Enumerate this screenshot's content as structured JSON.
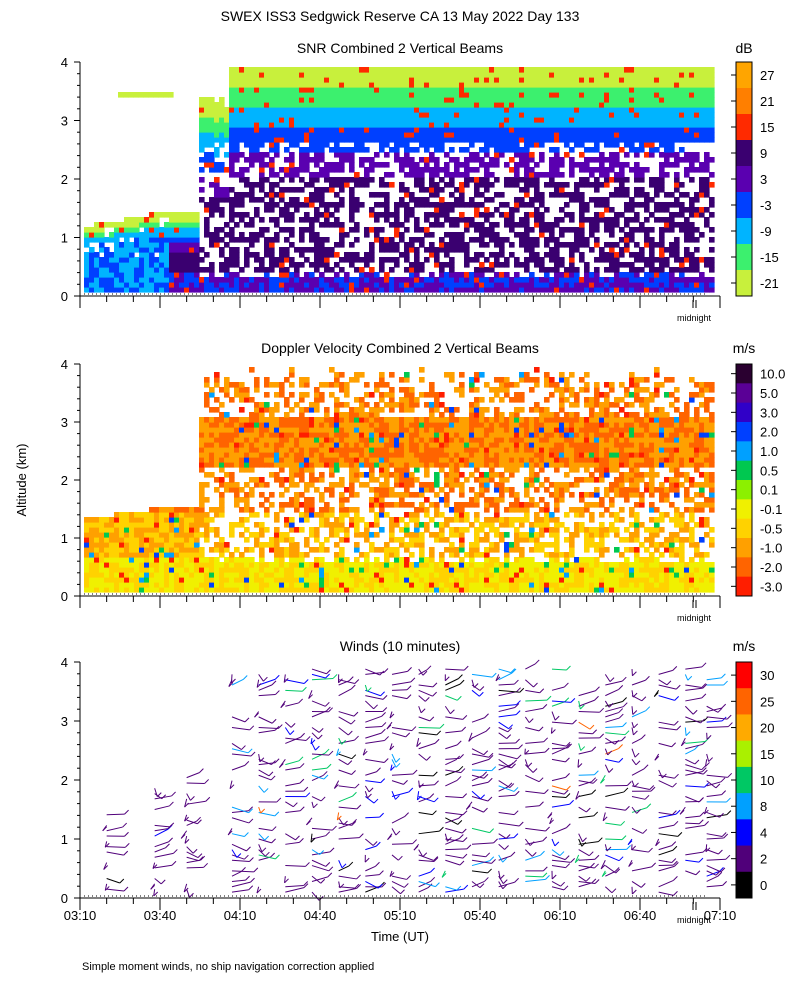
{
  "figure": {
    "title": "SWEX ISS3 Sedgwick Reserve CA  13 May 2022 Day 133",
    "ylabel": "Altitude (km)",
    "xlabel": "Time (UT)",
    "footnote": "Simple moment winds, no ship navigation correction applied",
    "midnight_label": "midnight",
    "x_ticks": [
      "03:10",
      "03:40",
      "04:10",
      "04:40",
      "05:10",
      "05:40",
      "06:10",
      "06:40",
      "07:10"
    ],
    "y_ticks": [
      "0",
      "1",
      "2",
      "3",
      "4"
    ]
  },
  "chart_data": [
    {
      "type": "heatmap",
      "title": "SNR Combined 2 Vertical Beams",
      "unit": "dB",
      "xlim": [
        "03:10",
        "07:10"
      ],
      "ylim": [
        0,
        4
      ],
      "colorbar": {
        "labels": [
          "27",
          "21",
          "15",
          "9",
          "3",
          "-3",
          "-9",
          "-15",
          "-21"
        ],
        "colors": [
          "#ffa500",
          "#ff7f00",
          "#ff2a00",
          "#3a0070",
          "#5a00b0",
          "#0040ff",
          "#00b4ff",
          "#3cf06e",
          "#c8f03c"
        ]
      }
    },
    {
      "type": "heatmap",
      "title": "Doppler Velocity Combined 2 Vertical Beams",
      "unit": "m/s",
      "xlim": [
        "03:10",
        "07:10"
      ],
      "ylim": [
        0,
        4
      ],
      "colorbar": {
        "labels": [
          "10.0",
          "5.0",
          "3.0",
          "2.0",
          "1.0",
          "0.5",
          "0.1",
          "-0.1",
          "-0.5",
          "-1.0",
          "-2.0",
          "-3.0"
        ],
        "colors": [
          "#2a0030",
          "#5a0096",
          "#3000c8",
          "#0040ff",
          "#00a0ff",
          "#00c850",
          "#8cf000",
          "#f0f000",
          "#ffd200",
          "#ffa000",
          "#ff6400",
          "#ff1e00"
        ]
      }
    },
    {
      "type": "scatter",
      "title": "Winds (10 minutes)",
      "unit": "m/s",
      "xlim": [
        "03:10",
        "07:10"
      ],
      "ylim": [
        0,
        4
      ],
      "colorbar": {
        "labels": [
          "30",
          "25",
          "20",
          "15",
          "10",
          "8",
          "4",
          "2",
          "0"
        ],
        "colors": [
          "#ff0000",
          "#ff6400",
          "#ffaa00",
          "#aaf000",
          "#00c864",
          "#00a0ff",
          "#0000ff",
          "#50007a",
          "#000000"
        ]
      },
      "profile_times": [
        "03:20",
        "03:38",
        "03:50",
        "04:07",
        "04:17",
        "04:27",
        "04:37",
        "04:47",
        "04:57",
        "05:07",
        "05:17",
        "05:27",
        "05:37",
        "05:47",
        "05:57",
        "06:07",
        "06:17",
        "06:27",
        "06:37",
        "06:47",
        "06:57",
        "07:05"
      ]
    }
  ]
}
